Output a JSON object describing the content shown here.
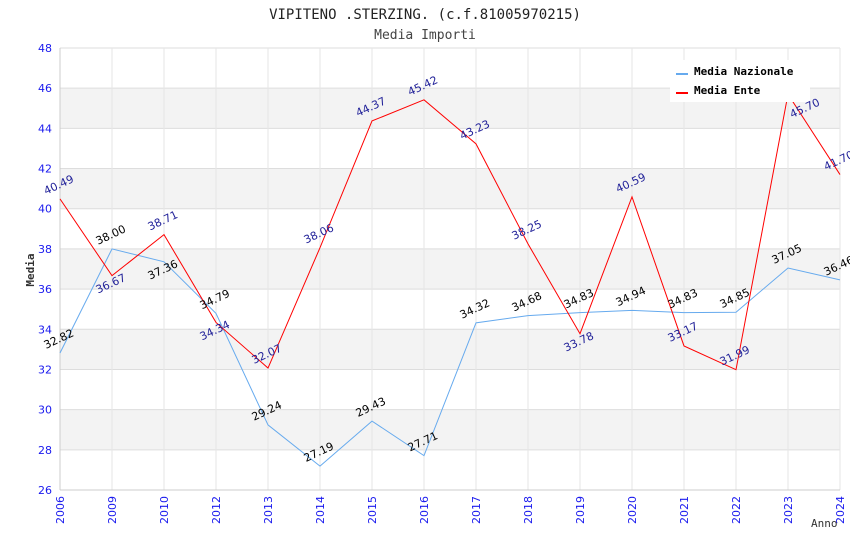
{
  "chart_data": {
    "type": "line",
    "title": "VIPITENO .STERZING. (c.f.81005970215)",
    "subtitle": "Media Importi",
    "xlabel": "Anno",
    "ylabel": "Media",
    "ylim": [
      26,
      48
    ],
    "yticks": [
      "26",
      "28",
      "30",
      "32",
      "34",
      "36",
      "38",
      "40",
      "42",
      "44",
      "46",
      "48"
    ],
    "grid": true,
    "legend_position": "top-right",
    "categories": [
      "2006",
      "2009",
      "2010",
      "2012",
      "2013",
      "2014",
      "2015",
      "2016",
      "2017",
      "2018",
      "2019",
      "2020",
      "2021",
      "2022",
      "2023",
      "2024"
    ],
    "series": [
      {
        "name": "Media Nazionale",
        "color": "#66aaee",
        "label_color": "#000000",
        "values": [
          32.82,
          38.0,
          37.36,
          34.79,
          29.24,
          27.19,
          29.43,
          27.71,
          34.32,
          34.68,
          34.83,
          34.94,
          34.83,
          34.85,
          37.05,
          36.46
        ]
      },
      {
        "name": "Media Ente",
        "color": "#ff0000",
        "label_color": "#222299",
        "values": [
          40.49,
          36.67,
          38.71,
          34.34,
          32.07,
          38.06,
          44.37,
          45.42,
          43.23,
          38.25,
          33.78,
          40.59,
          33.17,
          31.99,
          45.7,
          41.7
        ]
      }
    ]
  }
}
